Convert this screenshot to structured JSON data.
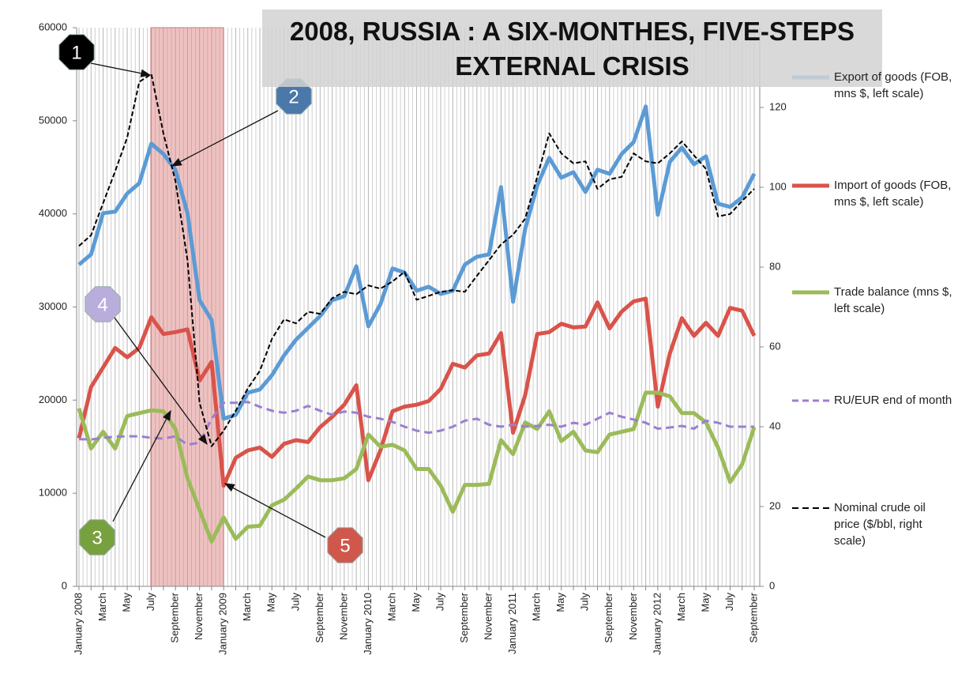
{
  "chart_data": {
    "type": "line",
    "title": "2008, RUSSIA : A SIX-MONTHES, FIVE-STEPS EXTERNAL CRISIS",
    "categories": [
      "January 2008",
      null,
      "March",
      null,
      "May",
      null,
      "July",
      null,
      "September",
      null,
      "November",
      null,
      "January 2009",
      null,
      "March",
      null,
      "May",
      null,
      "July",
      null,
      "September",
      null,
      "November",
      null,
      "January 2010",
      null,
      "March",
      null,
      "May",
      null,
      "July",
      null,
      "September",
      null,
      "November",
      null,
      "January 2011",
      null,
      "March",
      null,
      "May",
      null,
      "July",
      null,
      "September",
      null,
      "November",
      null,
      "January 2012",
      null,
      "March",
      null,
      "May",
      null,
      "July",
      null,
      "September"
    ],
    "ylim": [
      0,
      60000
    ],
    "yticks": [
      0,
      10000,
      20000,
      30000,
      40000,
      50000,
      60000
    ],
    "y2lim": [
      0,
      140
    ],
    "y2ticks": [
      0,
      20,
      40,
      60,
      80,
      100,
      120
    ],
    "series": [
      {
        "name": "Export of goods (FOB, mns $, left scale)",
        "color": "#5b9bd5",
        "style": "solid",
        "width": 5,
        "values": [
          34550,
          35650,
          40070,
          40240,
          42190,
          43290,
          47540,
          46430,
          44740,
          40070,
          30730,
          28610,
          18000,
          18420,
          20800,
          21140,
          22670,
          24790,
          26490,
          27760,
          29030,
          30730,
          31150,
          34380,
          27930,
          30300,
          34130,
          33700,
          31750,
          32170,
          31410,
          31750,
          34550,
          35400,
          35650,
          42870,
          30560,
          38370,
          43040,
          46010,
          43890,
          44480,
          42360,
          44740,
          44310,
          46430,
          47710,
          51530,
          39900,
          45590,
          47110,
          45330,
          46180,
          41090,
          40750,
          41770,
          44310
        ]
      },
      {
        "name": "Import of goods (FOB, mns $, left scale)",
        "color": "#d9534a",
        "style": "solid",
        "width": 5,
        "values": [
          15900,
          21400,
          23500,
          25600,
          24600,
          25600,
          28900,
          27100,
          27300,
          27600,
          22100,
          24100,
          10800,
          13800,
          14600,
          14900,
          13900,
          15300,
          15700,
          15500,
          17100,
          18200,
          19500,
          21600,
          11400,
          14600,
          18800,
          19300,
          19500,
          19900,
          21200,
          23900,
          23500,
          24800,
          25000,
          27200,
          16500,
          20500,
          27100,
          27300,
          28200,
          27800,
          27900,
          30500,
          27700,
          29500,
          30600,
          30900,
          19300,
          25000,
          28800,
          26900,
          28300,
          26900,
          29900,
          29600,
          26900
        ]
      },
      {
        "name": "Trade balance (mns $, left scale)",
        "color": "#9bbb59",
        "style": "solid",
        "width": 5,
        "values": [
          19100,
          14800,
          16600,
          14800,
          18300,
          18600,
          18900,
          18800,
          16900,
          11600,
          8200,
          4800,
          7400,
          5100,
          6400,
          6500,
          8700,
          9300,
          10500,
          11800,
          11400,
          11400,
          11600,
          12600,
          16300,
          15000,
          15200,
          14600,
          12600,
          12600,
          10800,
          8000,
          10900,
          10900,
          11000,
          15700,
          14200,
          17600,
          16900,
          18800,
          15600,
          16600,
          14600,
          14400,
          16300,
          16600,
          16900,
          20800,
          20800,
          20400,
          18600,
          18600,
          17600,
          14900,
          11200,
          13100,
          17100
        ]
      },
      {
        "name": "RU/EUR end of month",
        "color": "#9b7fcf",
        "style": "dashed",
        "width": 3,
        "axis": "y2",
        "values": [
          36.9,
          36.8,
          37.2,
          37.5,
          37.6,
          37.6,
          37.2,
          37.0,
          37.6,
          35.5,
          36.0,
          42.0,
          46.0,
          46.0,
          46.2,
          45.0,
          44.0,
          43.5,
          44.0,
          45.2,
          44.0,
          43.0,
          43.8,
          43.5,
          42.5,
          42.0,
          41.2,
          40.0,
          39.0,
          38.5,
          39.0,
          40.0,
          41.5,
          42.0,
          40.5,
          40.0,
          40.5,
          40.0,
          40.2,
          40.5,
          40.0,
          41.0,
          40.5,
          42.0,
          43.5,
          42.5,
          41.8,
          41.0,
          39.5,
          39.8,
          40.2,
          39.5,
          41.5,
          41.0,
          40.0,
          40.0,
          40.0
        ]
      },
      {
        "name": "Nominal crude oil price ($/bbl, right scale)",
        "color": "#000000",
        "style": "dashed",
        "width": 2,
        "axis": "y2",
        "values": [
          85.3,
          88.0,
          96.0,
          104.0,
          112.5,
          126.4,
          128.4,
          113.5,
          101.6,
          81.7,
          46.0,
          35.1,
          39.0,
          44.0,
          49.6,
          54.0,
          62.0,
          66.9,
          65.9,
          68.8,
          68.3,
          72.2,
          73.8,
          73.2,
          75.4,
          74.6,
          76.4,
          78.8,
          71.8,
          72.8,
          73.8,
          74.2,
          73.8,
          77.8,
          81.7,
          85.7,
          88.1,
          92.1,
          102.6,
          113.5,
          108.5,
          106.0,
          106.5,
          99.6,
          102.0,
          102.6,
          108.5,
          106.5,
          106.0,
          108.5,
          111.5,
          108.0,
          104.6,
          92.7,
          93.3,
          96.6,
          99.6
        ]
      }
    ],
    "annotations": [
      {
        "text": "1",
        "color": "#000000"
      },
      {
        "text": "2",
        "color": "#4a78aa"
      },
      {
        "text": "3",
        "color": "#77a13e"
      },
      {
        "text": "4",
        "color": "#b9aedb"
      },
      {
        "text": "5",
        "color": "#d0574b"
      }
    ]
  }
}
